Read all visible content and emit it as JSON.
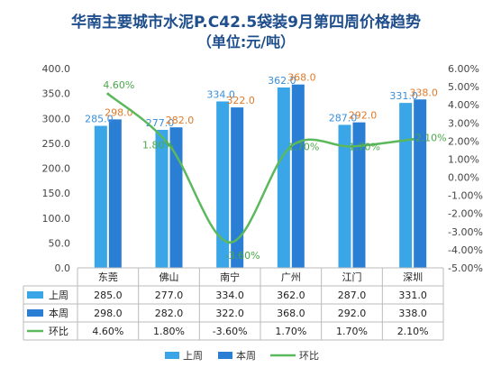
{
  "colors": {
    "last_week": "#3aa6e8",
    "this_week": "#2a7fd4",
    "ratio": "#5cb85c",
    "title": "#1f4e8c",
    "label_last_week": "#3a8fd8",
    "label_this_week": "#e07a2a",
    "label_ratio": "#4aa84a"
  },
  "chart_data": {
    "type": "bar",
    "title": "华南主要城市水泥P.C42.5袋装9月第四周价格趋势",
    "subtitle": "（单位:元/吨）",
    "categories": [
      "东莞",
      "佛山",
      "南宁",
      "广州",
      "江门",
      "深圳"
    ],
    "series": [
      {
        "name": "上周",
        "type": "bar",
        "axis": "left",
        "values": [
          285.0,
          277.0,
          334.0,
          362.0,
          287.0,
          331.0
        ],
        "labels": [
          "285.0",
          "277.0",
          "334.0",
          "362.0",
          "287.0",
          "331.0"
        ]
      },
      {
        "name": "本周",
        "type": "bar",
        "axis": "left",
        "values": [
          298.0,
          282.0,
          322.0,
          368.0,
          292.0,
          338.0
        ],
        "labels": [
          "298.0",
          "282.0",
          "322.0",
          "368.0",
          "292.0",
          "338.0"
        ]
      },
      {
        "name": "环比",
        "type": "line",
        "axis": "right",
        "smooth": true,
        "values": [
          4.6,
          1.8,
          -3.6,
          1.7,
          1.7,
          2.1
        ],
        "labels": [
          "4.60%",
          "1.80%",
          "-3.60%",
          "1.70%",
          "1.70%",
          "2.10%"
        ]
      }
    ],
    "y_left": {
      "min": 0,
      "max": 400,
      "step": 50,
      "ticks": [
        "0.0",
        "50.0",
        "100.0",
        "150.0",
        "200.0",
        "250.0",
        "300.0",
        "350.0",
        "400.0"
      ]
    },
    "y_right": {
      "min": -5,
      "max": 6,
      "step": 1,
      "ticks": [
        "-5.00%",
        "-4.00%",
        "-3.00%",
        "-2.00%",
        "-1.00%",
        "0.00%",
        "1.00%",
        "2.00%",
        "3.00%",
        "4.00%",
        "5.00%",
        "6.00%"
      ]
    },
    "table": {
      "rows": [
        {
          "name": "上周",
          "cells": [
            "285.0",
            "277.0",
            "334.0",
            "362.0",
            "287.0",
            "331.0"
          ]
        },
        {
          "name": "本周",
          "cells": [
            "298.0",
            "282.0",
            "322.0",
            "368.0",
            "292.0",
            "338.0"
          ]
        },
        {
          "name": "环比",
          "cells": [
            "4.60%",
            "1.80%",
            "-3.60%",
            "1.70%",
            "1.70%",
            "2.10%"
          ]
        }
      ]
    },
    "legend": {
      "position": "bottom",
      "items": [
        "上周",
        "本周",
        "环比"
      ]
    },
    "grid": false
  }
}
